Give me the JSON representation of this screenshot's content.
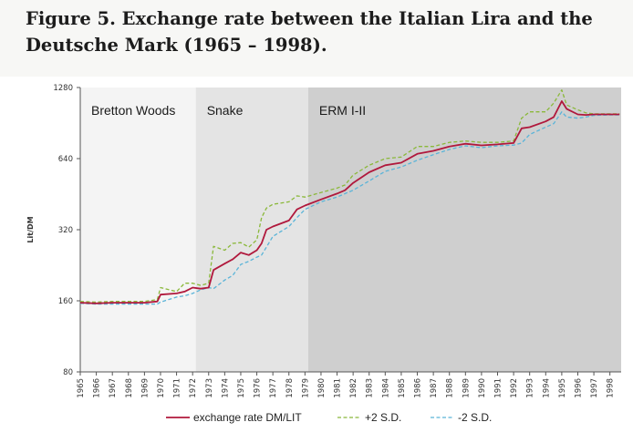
{
  "figure": {
    "title": "Figure 5. Exchange rate between the Italian Lira and the Deutsche Mark (1965 – 1998)."
  },
  "chart_data": {
    "type": "line",
    "title": "Figure 5. Exchange rate between the Italian Lira and the Deutsche Mark (1965 – 1998).",
    "xlabel": "",
    "ylabel": "Lit/DM",
    "yscale": "log2",
    "ylim": [
      80,
      1280
    ],
    "xlim": [
      1965,
      1998.7
    ],
    "yticks": [
      80,
      160,
      320,
      640,
      1280
    ],
    "xticks": [
      "1965",
      "1966",
      "1967",
      "1968",
      "1969",
      "1970",
      "1971",
      "1972",
      "1973",
      "1974",
      "1975",
      "1976",
      "1977",
      "1978",
      "1979",
      "1980",
      "1981",
      "1982",
      "1983",
      "1984",
      "1985",
      "1986",
      "1987",
      "1988",
      "1989",
      "1990",
      "1991",
      "1992",
      "1993",
      "1994",
      "1995",
      "1996",
      "1997",
      "1998"
    ],
    "regions": [
      {
        "label": "Bretton Woods",
        "x_start": 1965,
        "x_end": 1972.2,
        "color": "#f4f4f4"
      },
      {
        "label": "Snake",
        "x_start": 1972.2,
        "x_end": 1979.2,
        "color": "#e4e4e4"
      },
      {
        "label": "ERM I-II",
        "x_start": 1979.2,
        "x_end": 1998.7,
        "color": "#cfcfcf"
      }
    ],
    "series": [
      {
        "name": "exchange rate DM/LIT",
        "color": "#b0183c",
        "style": "solid",
        "x": [
          1965,
          1966,
          1967,
          1968,
          1969,
          1969.8,
          1970,
          1971,
          1971.5,
          1972,
          1972.5,
          1973,
          1973.3,
          1974,
          1974.5,
          1975,
          1975.5,
          1976,
          1976.3,
          1976.6,
          1977,
          1978,
          1978.5,
          1979,
          1980,
          1981,
          1981.5,
          1982,
          1983,
          1984,
          1985,
          1986,
          1987,
          1988,
          1989,
          1990,
          1991,
          1992,
          1992.5,
          1993,
          1994,
          1994.5,
          1995,
          1995.3,
          1996,
          1996.5,
          1997,
          1998,
          1998.6
        ],
        "y": [
          157,
          156,
          157,
          157,
          157,
          159,
          170,
          172,
          175,
          182,
          180,
          182,
          216,
          230,
          240,
          256,
          250,
          262,
          280,
          320,
          330,
          350,
          390,
          405,
          430,
          455,
          470,
          505,
          560,
          600,
          615,
          670,
          690,
          720,
          740,
          728,
          735,
          745,
          860,
          870,
          920,
          960,
          1120,
          1040,
          985,
          980,
          985,
          985,
          985
        ]
      },
      {
        "name": "+2 S.D.",
        "color": "#8ab83a",
        "style": "dashed",
        "x": [
          1965,
          1966,
          1967,
          1968,
          1969,
          1969.8,
          1970,
          1971,
          1971.5,
          1972,
          1972.5,
          1973,
          1973.3,
          1974,
          1974.5,
          1975,
          1975.5,
          1976,
          1976.3,
          1976.6,
          1977,
          1978,
          1978.5,
          1979,
          1980,
          1981,
          1981.5,
          1982,
          1983,
          1984,
          1985,
          1986,
          1987,
          1988,
          1989,
          1990,
          1991,
          1992,
          1992.5,
          1993,
          1994,
          1994.5,
          1995,
          1995.3,
          1996,
          1996.5,
          1997,
          1998,
          1998.6
        ],
        "y": [
          159,
          158,
          159,
          159,
          159,
          162,
          182,
          175,
          190,
          190,
          186,
          190,
          272,
          262,
          280,
          282,
          270,
          290,
          360,
          395,
          410,
          420,
          445,
          440,
          460,
          480,
          495,
          545,
          600,
          640,
          650,
          720,
          720,
          750,
          760,
          750,
          750,
          760,
          950,
          1010,
          1010,
          1100,
          1250,
          1080,
          1030,
          1000,
          990,
          990,
          990
        ]
      },
      {
        "name": "-2 S.D.",
        "color": "#5ab4d8",
        "style": "dashed",
        "x": [
          1965,
          1966,
          1967,
          1968,
          1969,
          1969.8,
          1970,
          1971,
          1971.5,
          1972,
          1972.5,
          1973,
          1973.3,
          1974,
          1974.5,
          1975,
          1975.5,
          1976,
          1976.3,
          1976.6,
          1977,
          1978,
          1978.5,
          1979,
          1980,
          1981,
          1981.5,
          1982,
          1983,
          1984,
          1985,
          1986,
          1987,
          1988,
          1989,
          1990,
          1991,
          1992,
          1992.5,
          1993,
          1994,
          1994.5,
          1995,
          1995.3,
          1996,
          1996.5,
          1997,
          1998,
          1998.6
        ],
        "y": [
          156,
          155,
          155,
          155,
          155,
          155,
          158,
          166,
          168,
          172,
          178,
          182,
          180,
          196,
          205,
          228,
          235,
          245,
          250,
          270,
          300,
          330,
          360,
          390,
          420,
          440,
          455,
          470,
          515,
          565,
          590,
          630,
          665,
          700,
          725,
          712,
          725,
          730,
          745,
          810,
          870,
          900,
          1010,
          960,
          950,
          960,
          975,
          980,
          980
        ]
      }
    ]
  }
}
